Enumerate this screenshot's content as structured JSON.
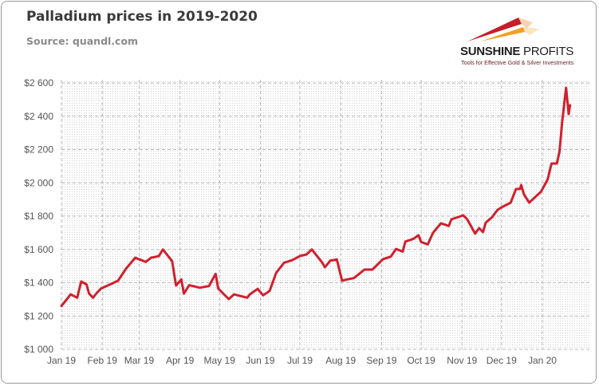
{
  "chart_data": {
    "type": "line",
    "title": "Palladium prices in 2019-2020",
    "subtitle": "Source: quandl.com",
    "xlabel": "",
    "ylabel": "",
    "ylim": [
      1000,
      2600
    ],
    "yticks": [
      "$1 000",
      "$1 200",
      "$1 400",
      "$1 600",
      "$1 800",
      "$2 000",
      "$2 200",
      "$2 400",
      "$2 600"
    ],
    "ytick_values": [
      1000,
      1200,
      1400,
      1600,
      1800,
      2000,
      2200,
      2400,
      2600
    ],
    "xticks": [
      "Jan 19",
      "Feb 19",
      "Mar 19",
      "Apr 19",
      "May 19",
      "Jun 19",
      "Jul 19",
      "Aug 19",
      "Sep 19",
      "Oct 19",
      "Nov 19",
      "Dec 19",
      "Jan 20"
    ],
    "xtick_dates": [
      "2019-01-01",
      "2019-02-01",
      "2019-03-01",
      "2019-04-01",
      "2019-05-01",
      "2019-06-01",
      "2019-07-01",
      "2019-08-01",
      "2019-09-01",
      "2019-10-01",
      "2019-11-01",
      "2019-12-01",
      "2020-01-01"
    ],
    "grid": true,
    "legend": "none",
    "series": [
      {
        "color": "#d0202e",
        "x": [
          "2019-01-01",
          "2019-01-04",
          "2019-01-08",
          "2019-01-13",
          "2019-01-16",
          "2019-01-20",
          "2019-01-22",
          "2019-01-25",
          "2019-01-28",
          "2019-01-31",
          "2019-02-07",
          "2019-02-13",
          "2019-02-19",
          "2019-02-26",
          "2019-03-06",
          "2019-03-10",
          "2019-03-16",
          "2019-03-19",
          "2019-03-26",
          "2019-03-29",
          "2019-04-02",
          "2019-04-04",
          "2019-04-08",
          "2019-04-16",
          "2019-04-23",
          "2019-04-28",
          "2019-04-30",
          "2019-05-08",
          "2019-05-12",
          "2019-05-22",
          "2019-05-24",
          "2019-05-30",
          "2019-06-03",
          "2019-06-08",
          "2019-06-13",
          "2019-06-19",
          "2019-06-25",
          "2019-07-01",
          "2019-07-06",
          "2019-07-10",
          "2019-07-14",
          "2019-07-18",
          "2019-07-20",
          "2019-07-24",
          "2019-07-29",
          "2019-08-02",
          "2019-08-06",
          "2019-08-11",
          "2019-08-19",
          "2019-08-25",
          "2019-09-02",
          "2019-09-08",
          "2019-09-12",
          "2019-09-17",
          "2019-09-19",
          "2019-09-25",
          "2019-09-29",
          "2019-10-01",
          "2019-10-06",
          "2019-10-10",
          "2019-10-16",
          "2019-10-22",
          "2019-10-24",
          "2019-11-02",
          "2019-11-05",
          "2019-11-11",
          "2019-11-14",
          "2019-11-17",
          "2019-11-19",
          "2019-11-24",
          "2019-11-28",
          "2019-12-02",
          "2019-12-08",
          "2019-12-12",
          "2019-12-15",
          "2019-12-16",
          "2019-12-18",
          "2019-12-22",
          "2019-12-31",
          "2020-01-05",
          "2020-01-08",
          "2020-01-12",
          "2020-01-14",
          "2020-01-16",
          "2020-01-19",
          "2020-01-21",
          "2020-01-22"
        ],
        "y": [
          1260,
          1290,
          1330,
          1310,
          1407,
          1390,
          1335,
          1310,
          1340,
          1365,
          1390,
          1412,
          1484,
          1550,
          1525,
          1550,
          1560,
          1600,
          1530,
          1383,
          1420,
          1335,
          1385,
          1370,
          1380,
          1453,
          1365,
          1302,
          1330,
          1310,
          1330,
          1363,
          1325,
          1350,
          1460,
          1520,
          1535,
          1560,
          1570,
          1600,
          1560,
          1520,
          1493,
          1532,
          1540,
          1412,
          1420,
          1428,
          1479,
          1479,
          1541,
          1557,
          1603,
          1587,
          1647,
          1663,
          1685,
          1645,
          1630,
          1700,
          1757,
          1741,
          1781,
          1805,
          1781,
          1695,
          1728,
          1704,
          1760,
          1795,
          1838,
          1857,
          1881,
          1963,
          1963,
          1987,
          1931,
          1881,
          1947,
          2020,
          2116,
          2116,
          2188,
          2365,
          2571,
          2413,
          2466
        ]
      }
    ]
  },
  "logo": {
    "name_bold": "SUNSHINE",
    "name_thin": " PROFITS",
    "tagline": "Tools for Effective Gold & Silver Investments"
  }
}
